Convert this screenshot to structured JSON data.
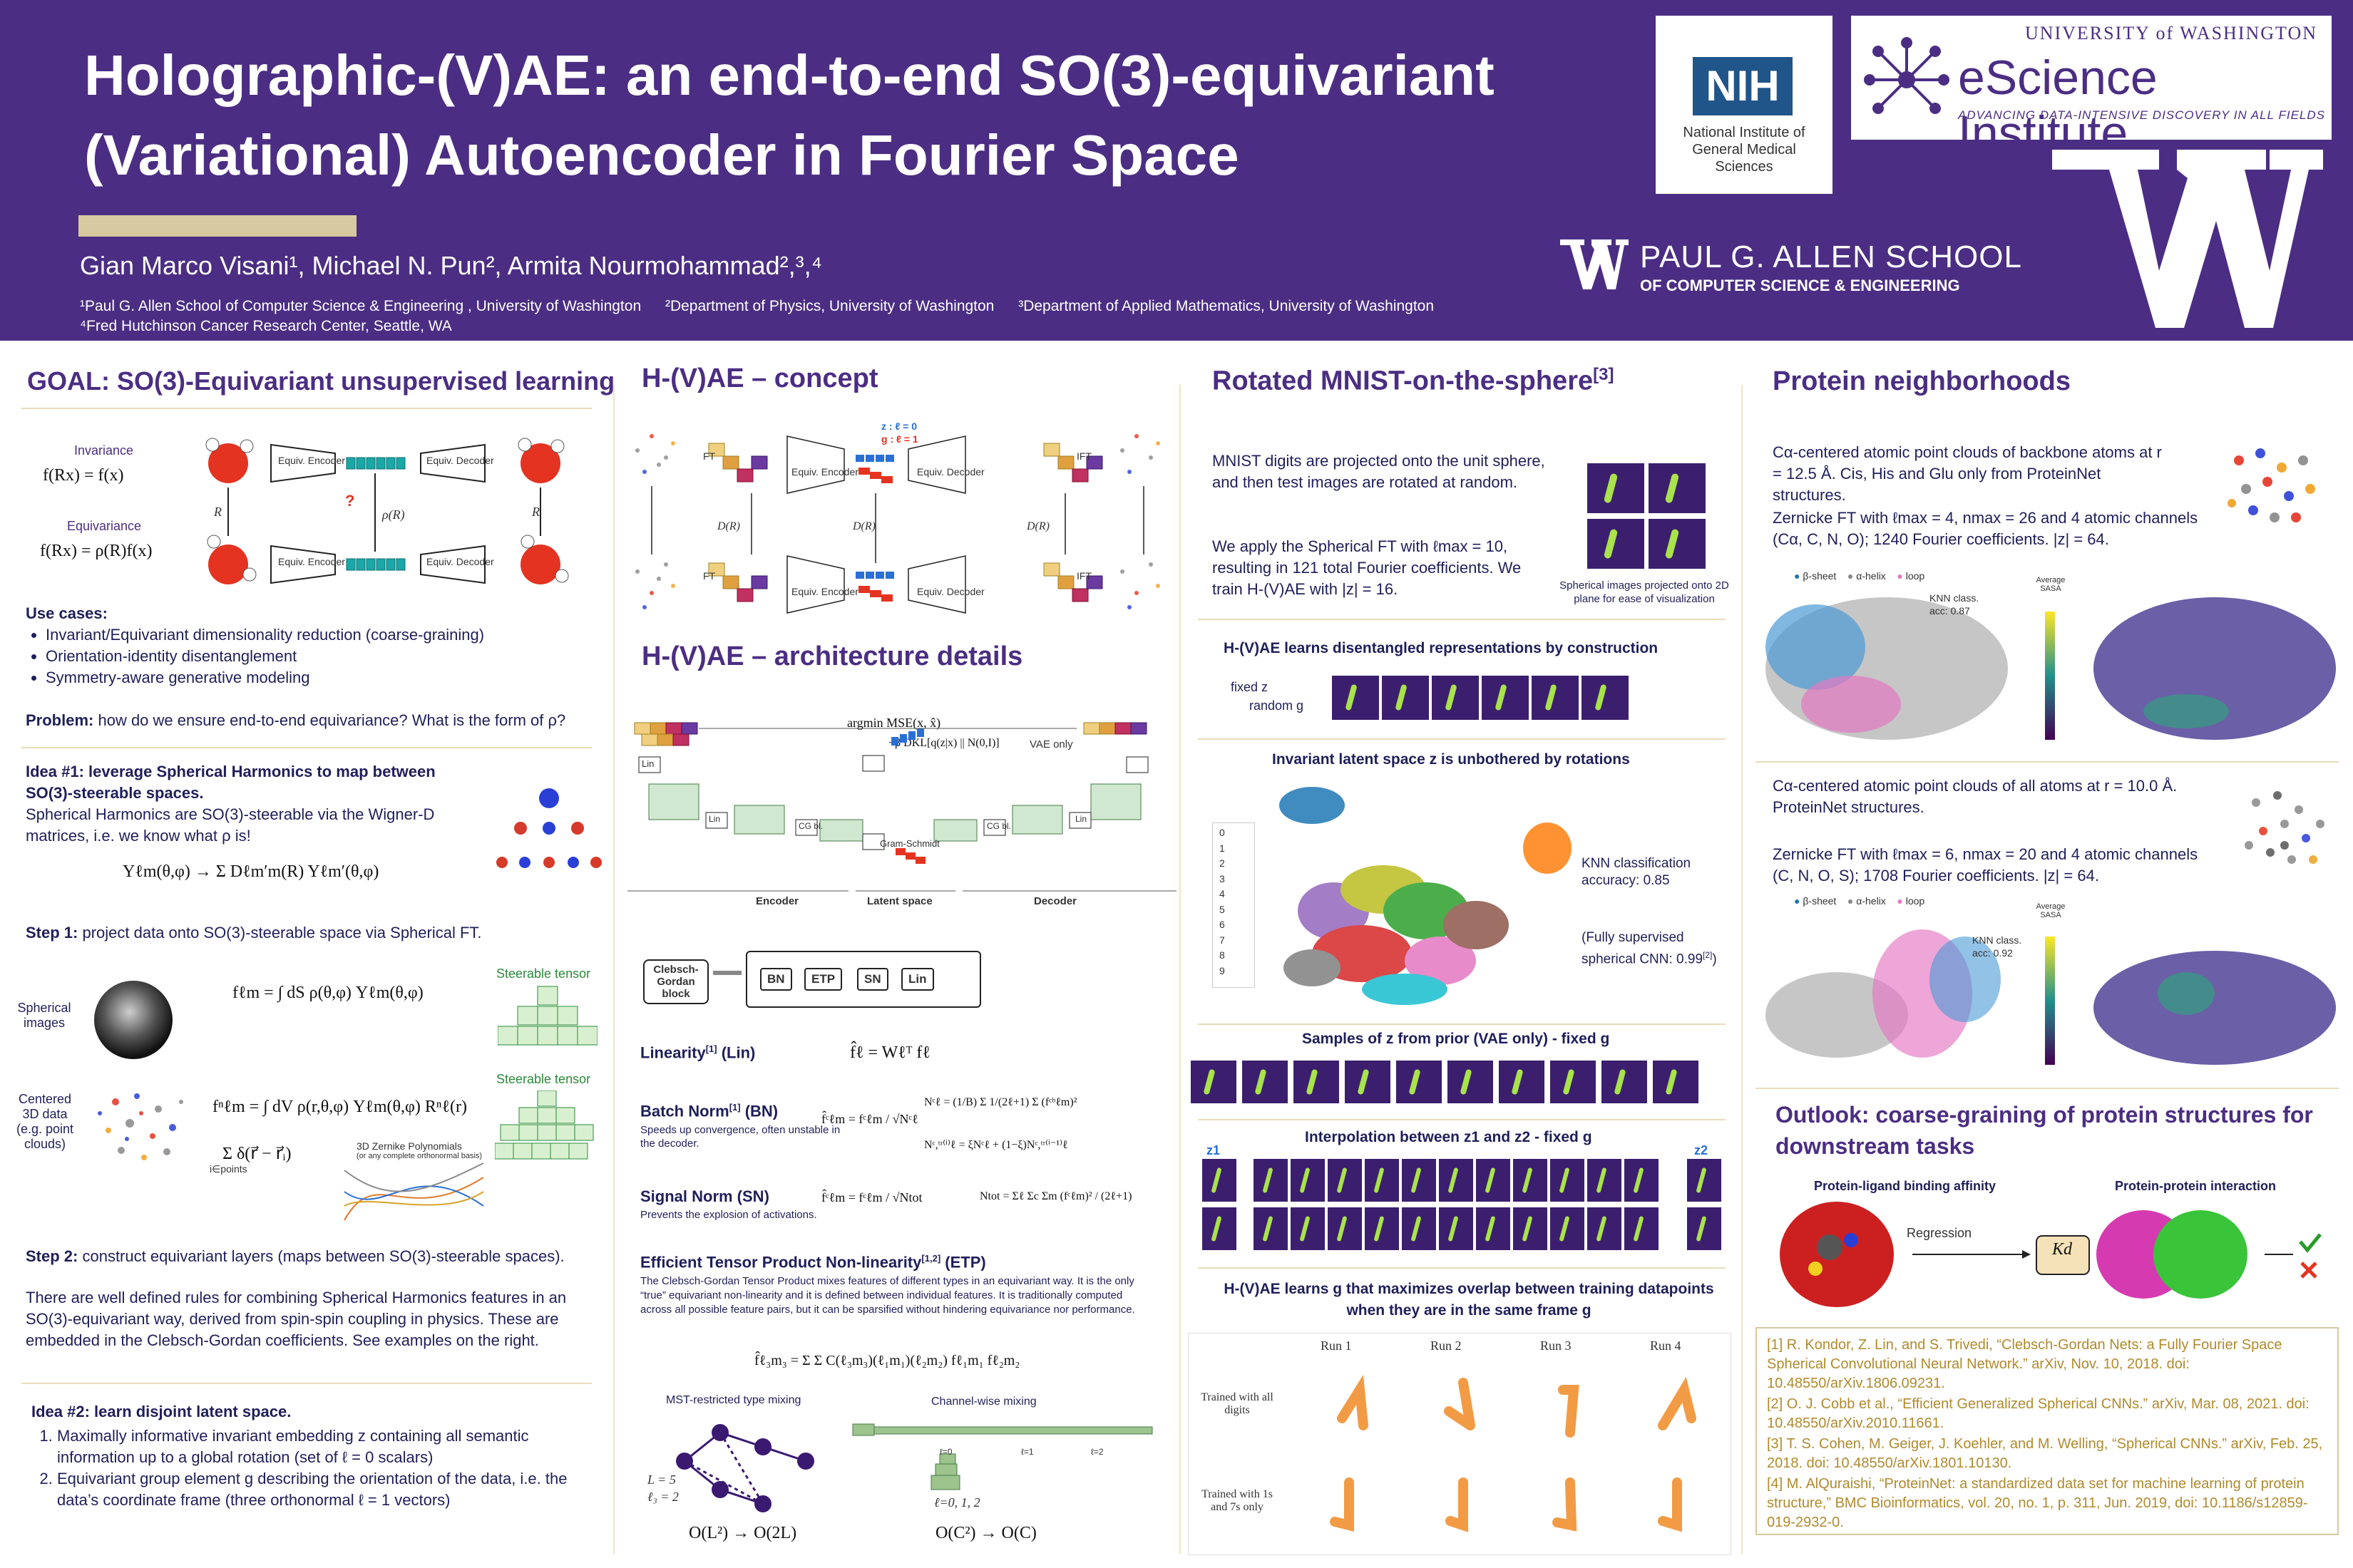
{
  "header": {
    "title": "Holographic-(V)AE: an end-to-end SO(3)-equivariant (Variational) Autoencoder in Fourier Space",
    "authors": "Gian Marco Visani¹, Michael N. Pun², Armita Nourmohammad²,³,⁴",
    "affiliations": [
      "¹Paul G. Allen School of Computer Science & Engineering , University of Washington",
      "²Department of Physics, University of Washington",
      "³Department of Applied Mathematics, University of Washington",
      "⁴Fred Hutchinson Cancer Research Center, Seattle, WA"
    ],
    "nih_mark": "NIH",
    "nih_text": "National Institute of General Medical Sciences",
    "esci_uw": "UNIVERSITY of WASHINGTON",
    "esci_name": "eScience Institute",
    "esci_tag": "ADVANCING DATA-INTENSIVE DISCOVERY IN ALL FIELDS",
    "allen_line1": "PAUL G. ALLEN SCHOOL",
    "allen_line2": "OF COMPUTER SCIENCE & ENGINEERING"
  },
  "col1": {
    "goal_title": "GOAL: SO(3)-Equivariant unsupervised learning",
    "invariance_label": "Invariance",
    "invariance_eq": "f(Rx) = f(x)",
    "equivariance_label": "Equivariance",
    "equivariance_eq": "f(Rx) = ρ(R)f(x)",
    "encoder_label": "Equiv. Encoder",
    "decoder_label": "Equiv. Decoder",
    "rho_label": "ρ(R)",
    "r_label": "R",
    "use_cases_title": "Use cases:",
    "use_cases": [
      "Invariant/Equivariant dimensionality reduction (coarse-graining)",
      "Orientation-identity disentanglement",
      "Symmetry-aware generative modeling"
    ],
    "problem_label": "Problem:",
    "problem_text": " how do we ensure end-to-end equivariance? What is the form of ρ?",
    "idea1_title": "Idea #1: leverage Spherical Harmonics to map between SO(3)-steerable spaces.",
    "idea1_text": "Spherical Harmonics are SO(3)-steerable via the Wigner-D matrices, i.e. we know what ρ is!",
    "sh_eq": "Yℓm(θ,φ) → Σ Dℓm′m(R) Yℓm′(θ,φ)",
    "step1_label": "Step 1:",
    "step1_text": " project data onto SO(3)-steerable space via Spherical FT.",
    "spherical_images": "Spherical images",
    "centered_3d": "Centered 3D data (e.g. point clouds)",
    "steerable_tensor": "Steerable tensor",
    "eq_sft": "fℓm = ∫ dS ρ(θ,φ) Yℓm(θ,φ)",
    "eq_zft": "fⁿℓm = ∫ dV ρ(r,θ,φ) Yℓm(θ,φ) Rⁿℓ(r)",
    "eq_points": "Σ δ(r⃗ − r⃗ᵢ)",
    "points_sub": "i∈points",
    "zernike_note": "3D Zernike Polynomials",
    "zernike_sub": "(or any complete orthonormal basis)",
    "step2_label": "Step 2:",
    "step2_text": " construct equivariant layers (maps between SO(3)-steerable spaces).",
    "rules_text": "There are well defined rules for combining Spherical Harmonics features in an SO(3)-equivariant way, derived from spin-spin coupling in physics. These are embedded in the Clebsch-Gordan coefficients. See examples on the right.",
    "idea2_title": "Idea #2: learn disjoint latent space.",
    "idea2_items": [
      "Maximally informative invariant embedding z containing all semantic information up to a global rotation (set of ℓ = 0 scalars)",
      "Equivariant group element g describing the orientation of the data, i.e. the data’s coordinate frame (three orthonormal ℓ = 1 vectors)"
    ]
  },
  "col2": {
    "concept_title": "H-(V)AE – concept",
    "ft": "FT",
    "ift": "IFT",
    "encoder": "Equiv. Encoder",
    "decoder": "Equiv. Decoder",
    "z_legend": "z : ℓ = 0",
    "g_legend": "g : ℓ = 1",
    "dr": "D(R)",
    "arch_title": "H-(V)AE – architecture details",
    "loss_top": "argmin MSE(x, x̂)",
    "loss_kl": "+β DKL[q(z|x) || N(0,I)]",
    "vae_only": "VAE only",
    "encoder_section": "Encoder",
    "latent_section": "Latent space",
    "decoder_section": "Decoder",
    "gram_schmidt": "Gram-Schmidt",
    "lin": "Lin",
    "cg_bl": "CG bl.",
    "cg_block": "Clebsch-Gordan block",
    "block_items": [
      "BN",
      "ETP",
      "SN",
      "Lin"
    ],
    "linearity_title": "Linearity",
    "linearity_abbr": " (Lin)",
    "linearity_eq": "f̂ℓ = Wℓᵀ fℓ",
    "bn_title": "Batch Norm",
    "bn_abbr": " (BN)",
    "bn_desc": "Speeds up convergence, often unstable in the decoder.",
    "bn_eq1": "f̂ᶜℓm = fᶜℓm / √Nᶜℓ",
    "bn_eq2": "Nᶜℓ = (1/B) Σ 1/(2ℓ+1) Σ (fᶜᵇℓm)²",
    "bn_eq3": "Nᶜ,ᵗʳ⁽ⁱ⁾ℓ = ξNᶜℓ + (1−ξ)Nᶜ,ᵗʳ⁽ⁱ⁻¹⁾ℓ",
    "sn_title": "Signal Norm (SN)",
    "sn_desc": "Prevents the explosion of activations.",
    "sn_eq1": "f̂ᶜℓm = fᶜℓm / √Ntot",
    "sn_eq2": "Ntot = Σℓ Σc Σm (fᶜℓm)² / (2ℓ+1)",
    "etp_title": "Efficient Tensor Product Non-linearity",
    "etp_abbr": " (ETP)",
    "etp_desc": "The Clebsch-Gordan Tensor Product mixes features of different types in an equivariant way. It is the only “true” equivariant non-linearity and it is defined between individual features. It is traditionally computed across all possible feature pairs, but it can be sparsified without hindering equivariance nor performance.",
    "etp_eq": "f̂ℓ₃m₃ = Σ Σ C(ℓ₃m₃)(ℓ₁m₁)(ℓ₂m₂) fℓ₁m₁ fℓ₂m₂",
    "mst_label": "MST-restricted type mixing",
    "cw_label": "Channel-wise mixing",
    "mst_l": "L = 5",
    "mst_l3": "ℓ₃ = 2",
    "mst_o": "O(L²) → O(2L)",
    "cw_o": "O(C²) → O(C)",
    "cw_ells": "ℓ=0, 1, 2"
  },
  "col3": {
    "mnist_title": "Rotated MNIST-on-the-sphere",
    "mnist_text1": "MNIST digits are projected onto the unit sphere, and then test images are rotated at random.",
    "mnist_text2": "We apply the Spherical FT with ℓmax = 10, resulting in 121 total Fourier coefficients. We train H-(V)AE with |z| = 16.",
    "proj_caption": "Spherical images projected onto 2D plane for ease of visualization",
    "disentangled_title": "H-(V)AE learns disentangled representations by construction",
    "fixed_z": "fixed z",
    "random_g": "random g",
    "invariant_title": "Invariant latent space z is unbothered by rotations",
    "legend_digits": [
      "0",
      "1",
      "2",
      "3",
      "4",
      "5",
      "6",
      "7",
      "8",
      "9"
    ],
    "digit_colors": [
      "#1f77b4",
      "#ff7f0e",
      "#2ca02c",
      "#d62728",
      "#9467bd",
      "#8c564b",
      "#e377c2",
      "#7f7f7f",
      "#bcbd22",
      "#17becf"
    ],
    "knn_text": "KNN classification accuracy: 0.85",
    "supervised_text": "(Fully supervised spherical CNN: 0.99",
    "samples_title": "Samples of z from prior (VAE only) - fixed g",
    "interp_title": "Interpolation between z1 and z2 - fixed g",
    "z1": "z1",
    "z2": "z2",
    "overlap_title": "H-(V)AE learns g that maximizes overlap between training datapoints when they are in the same frame g",
    "runs": [
      "Run 1",
      "Run 2",
      "Run 3",
      "Run 4"
    ],
    "row1": "Trained with all digits",
    "row2": "Trained with 1s and 7s only"
  },
  "col4": {
    "protein_title": "Protein neighborhoods",
    "p_text1": "Cα-centered atomic point clouds of backbone atoms at r = 12.5 Å. Cis, His and Glu only from ProteinNet structures.",
    "p_text2": "Zernicke FT with ℓmax = 4, nmax = 26 and 4 atomic channels (Cα, C, N, O); 1240 Fourier coefficients. |z| = 64.",
    "legend": [
      "β-sheet",
      "α-helix",
      "loop"
    ],
    "legend_colors": [
      "#1f77b4",
      "#888888",
      "#e377c2"
    ],
    "knn1": "KNN class. acc: 0.87",
    "sasa": "Average SASA",
    "p_text3": "Cα-centered atomic point clouds of all atoms at r = 10.0 Å. ProteinNet structures.",
    "p_text4": "Zernicke FT with ℓmax = 6, nmax = 20 and 4 atomic channels (C, N, O, S); 1708 Fourier coefficients. |z| = 64.",
    "knn2": "KNN class. acc: 0.92",
    "outlook_title": "Outlook: coarse-graining of protein structures for downstream tasks",
    "ligand": "Protein-ligand binding affinity",
    "ppi": "Protein-protein interaction",
    "regression": "Regression",
    "kd": "Kd",
    "refs": [
      "[1] R. Kondor, Z. Lin, and S. Trivedi, “Clebsch-Gordan Nets: a Fully Fourier Space Spherical Convolutional Neural Network.” arXiv, Nov. 10, 2018. doi: 10.48550/arXiv.1806.09231.",
      "[2] O. J. Cobb et al., “Efficient Generalized Spherical CNNs.” arXiv, Mar. 08, 2021. doi: 10.48550/arXiv.2010.11661.",
      "[3] T. S. Cohen, M. Geiger, J. Koehler, and M. Welling, “Spherical CNNs.” arXiv, Feb. 25, 2018. doi: 10.48550/arXiv.1801.10130.",
      "[4] M. AlQuraishi, “ProteinNet: a standardized data set for machine learning of protein structure,” BMC Bioinformatics, vol. 20, no. 1, p. 311, Jun. 2019, doi: 10.1186/s12859-019-2932-0."
    ]
  }
}
